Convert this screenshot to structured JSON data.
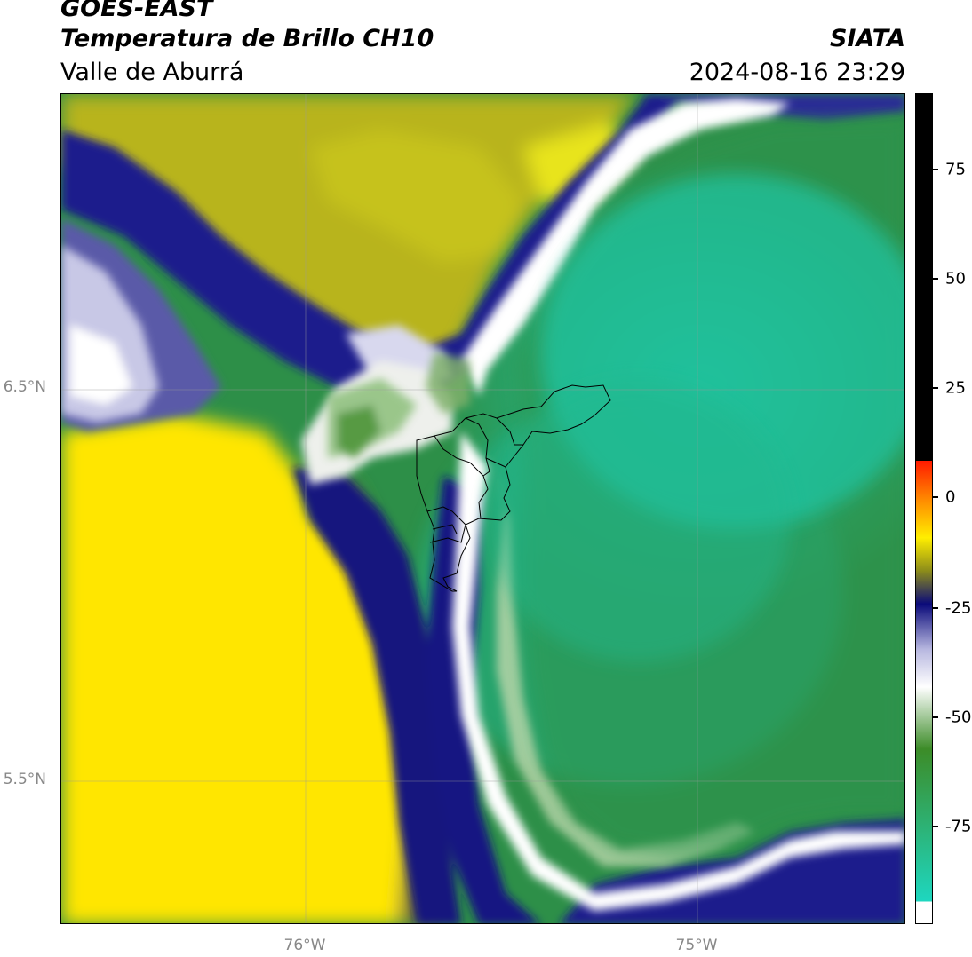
{
  "header": {
    "satellite": "GOES-EAST",
    "product": "Temperatura de Brillo CH10",
    "region": "Valle de Aburrá",
    "organization": "SIATA",
    "datetime": "2024-08-16 23:29"
  },
  "map": {
    "lat_labels": [
      "6.5°N",
      "5.5°N"
    ],
    "lon_labels": [
      "76°W",
      "75°W"
    ]
  },
  "colorbar": {
    "tick_labels": [
      "75",
      "50",
      "25",
      "0",
      "-25",
      "-50",
      "-75"
    ],
    "colors": {
      "black": "#000000",
      "red": "#ff1a00",
      "orange": "#ff8c00",
      "yellow": "#ffee00",
      "olive": "#8c8c1a",
      "navy": "#0a0a7a",
      "lavender": "#b8b8e0",
      "white": "#ffffff",
      "green": "#3c8c28",
      "teal": "#1ed7c0"
    }
  }
}
